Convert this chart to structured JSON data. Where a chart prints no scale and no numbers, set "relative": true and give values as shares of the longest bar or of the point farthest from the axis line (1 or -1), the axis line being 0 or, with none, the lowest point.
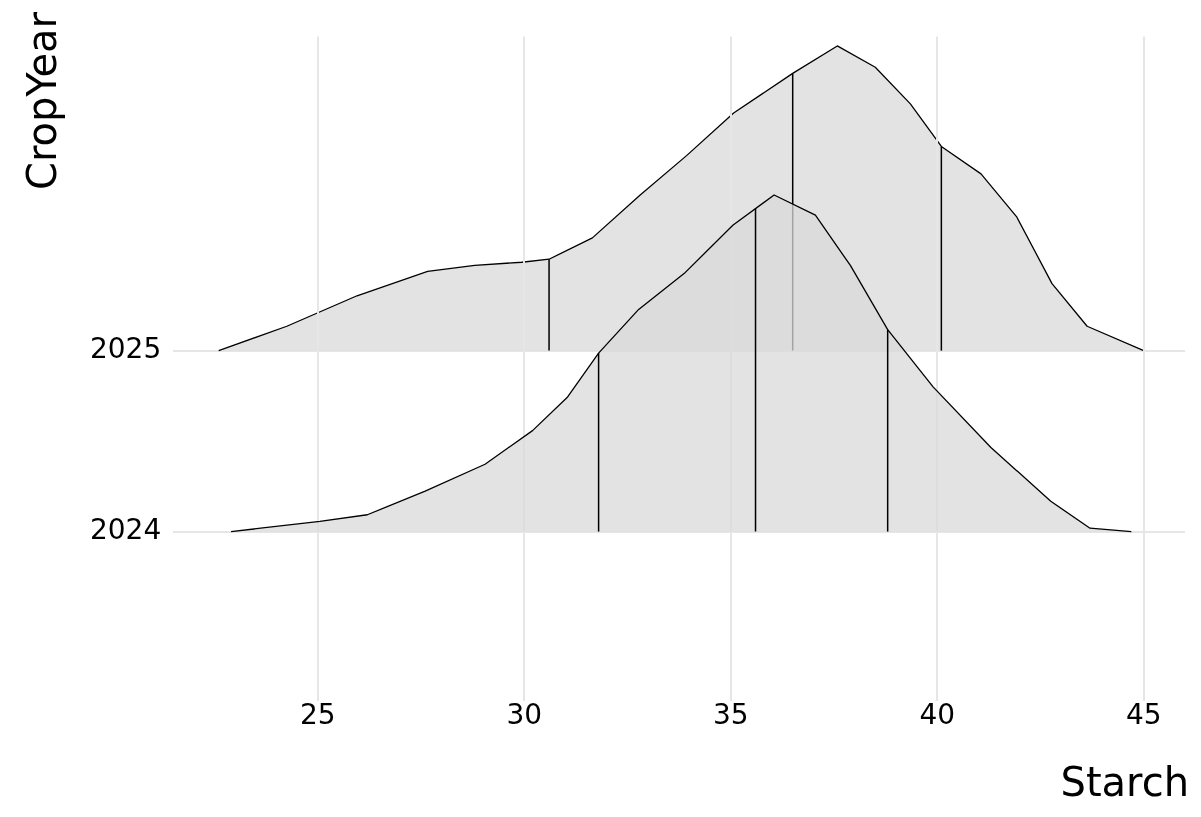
{
  "chart_data": [
    {
      "type": "area",
      "relative": true,
      "ylabel": "CropYear",
      "xlim": [
        21.5,
        46
      ],
      "xticks": [
        25,
        30,
        35,
        40,
        45
      ],
      "grid": true,
      "tick_labels": "y",
      "series": [
        {
          "name": "2025",
          "color": "#d9d9d9",
          "x": [
            22.6,
            24.25,
            25.95,
            27.66,
            28.8,
            29.94,
            30.6,
            31.65,
            32.8,
            33.93,
            35.07,
            36.5,
            37.58,
            38.5,
            39.35,
            40.1,
            41.06,
            41.92,
            42.78,
            43.63,
            45.0
          ],
          "values": [
            0,
            0.08,
            0.18,
            0.26,
            0.28,
            0.29,
            0.3,
            0.37,
            0.51,
            0.64,
            0.78,
            0.91,
            1,
            0.93,
            0.81,
            0.67,
            0.58,
            0.44,
            0.22,
            0.08,
            0
          ]
        }
      ],
      "ref_lines": [
        {
          "axis": "x",
          "value": 30.6,
          "color": "#000000"
        },
        {
          "axis": "x",
          "value": 36.5,
          "color": "#000000"
        },
        {
          "axis": "x",
          "value": 40.1,
          "color": "#000000"
        }
      ]
    },
    {
      "type": "area",
      "relative": true,
      "xlabel": "Starch",
      "xlim": [
        21.5,
        46
      ],
      "xticks": [
        25,
        30,
        35,
        40,
        45
      ],
      "grid": true,
      "series": [
        {
          "name": "2024",
          "color": "#d9d9d9",
          "x": [
            22.9,
            25.05,
            26.2,
            27.6,
            29.05,
            30.2,
            31.05,
            31.8,
            32.77,
            33.9,
            35.05,
            36.05,
            37.05,
            37.9,
            38.8,
            39.9,
            41.3,
            42.75,
            43.7,
            44.7
          ],
          "values": [
            0,
            0.03,
            0.05,
            0.12,
            0.2,
            0.3,
            0.4,
            0.53,
            0.66,
            0.77,
            0.91,
            1,
            0.94,
            0.79,
            0.6,
            0.43,
            0.25,
            0.09,
            0.01,
            0
          ]
        }
      ],
      "ref_lines": [
        {
          "axis": "x",
          "value": 31.8,
          "color": "#000000"
        },
        {
          "axis": "x",
          "value": 35.6,
          "color": "#000000"
        },
        {
          "axis": "x",
          "value": 38.8,
          "color": "#000000"
        }
      ]
    }
  ]
}
